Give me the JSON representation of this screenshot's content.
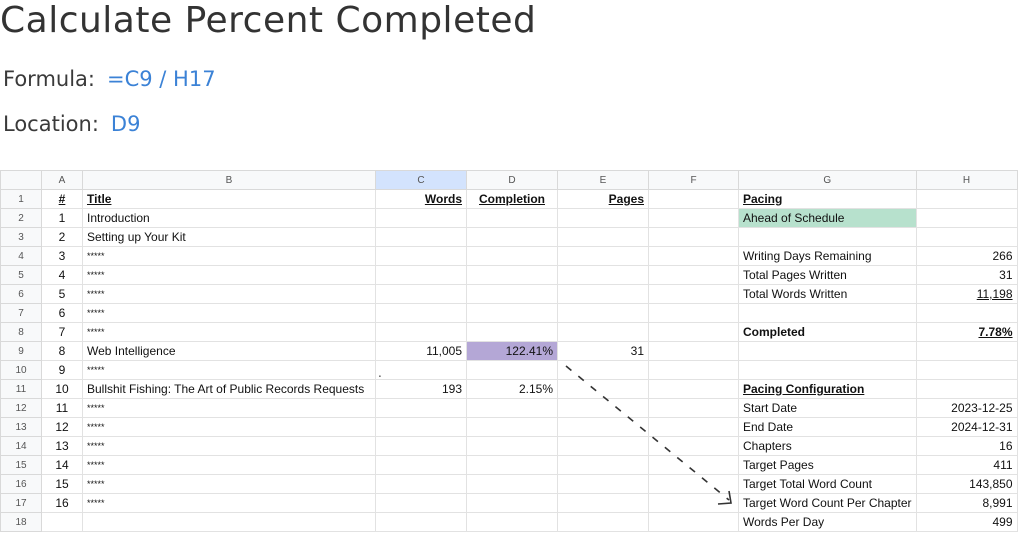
{
  "heading": "Calculate Percent Completed",
  "formula": {
    "label": "Formula:",
    "value": "=C9 / H17"
  },
  "location": {
    "label": "Location:",
    "value": "D9"
  },
  "columns": [
    "A",
    "B",
    "C",
    "D",
    "E",
    "F",
    "G",
    "H"
  ],
  "selected_column": "C",
  "rows": [
    {
      "n": "1",
      "a": "#",
      "b": "Title",
      "c": "Words",
      "d": "Completion",
      "e": "Pages",
      "g": "Pacing",
      "h": ""
    },
    {
      "n": "2",
      "a": "1",
      "b": "Introduction",
      "c": "",
      "d": "",
      "e": "",
      "g": "Ahead of Schedule",
      "h": ""
    },
    {
      "n": "3",
      "a": "2",
      "b": "Setting up Your Kit",
      "c": "",
      "d": "",
      "e": "",
      "g": "",
      "h": ""
    },
    {
      "n": "4",
      "a": "3",
      "b": "*****",
      "c": "",
      "d": "",
      "e": "",
      "g": "Writing Days Remaining",
      "h": "266"
    },
    {
      "n": "5",
      "a": "4",
      "b": "*****",
      "c": "",
      "d": "",
      "e": "",
      "g": "Total Pages Written",
      "h": "31"
    },
    {
      "n": "6",
      "a": "5",
      "b": "*****",
      "c": "",
      "d": "",
      "e": "",
      "g": "Total Words Written",
      "h": "11,198"
    },
    {
      "n": "7",
      "a": "6",
      "b": "*****",
      "c": "",
      "d": "",
      "e": "",
      "g": "",
      "h": ""
    },
    {
      "n": "8",
      "a": "7",
      "b": "*****",
      "c": "",
      "d": "",
      "e": "",
      "g": "Completed",
      "h": "7.78%"
    },
    {
      "n": "9",
      "a": "8",
      "b": "Web Intelligence",
      "c": "11,005",
      "d": "122.41%",
      "e": "31",
      "g": "",
      "h": ""
    },
    {
      "n": "10",
      "a": "9",
      "b": "*****",
      "c": "",
      "d": "",
      "e": "",
      "g": "",
      "h": ""
    },
    {
      "n": "11",
      "a": "10",
      "b": "Bullshit Fishing: The Art of Public Records Requests",
      "c": "193",
      "d": "2.15%",
      "e": "",
      "g": "Pacing Configuration",
      "h": ""
    },
    {
      "n": "12",
      "a": "11",
      "b": "*****",
      "c": "",
      "d": "",
      "e": "",
      "g": "Start Date",
      "h": "2023-12-25"
    },
    {
      "n": "13",
      "a": "12",
      "b": "*****",
      "c": "",
      "d": "",
      "e": "",
      "g": "End Date",
      "h": "2024-12-31"
    },
    {
      "n": "14",
      "a": "13",
      "b": "*****",
      "c": "",
      "d": "",
      "e": "",
      "g": "Chapters",
      "h": "16"
    },
    {
      "n": "15",
      "a": "14",
      "b": "*****",
      "c": "",
      "d": "",
      "e": "",
      "g": "Target Pages",
      "h": "411"
    },
    {
      "n": "16",
      "a": "15",
      "b": "*****",
      "c": "",
      "d": "",
      "e": "",
      "g": "Target Total Word Count",
      "h": "143,850"
    },
    {
      "n": "17",
      "a": "16",
      "b": "*****",
      "c": "",
      "d": "",
      "e": "",
      "g": "Target Word Count Per Chapter",
      "h": "8,991"
    },
    {
      "n": "18",
      "a": "",
      "b": "",
      "c": "",
      "d": "",
      "e": "",
      "g": "Words Per Day",
      "h": "499"
    }
  ],
  "colors": {
    "selected_header": "#d3e3fd",
    "pacing_status": "#b7e1cd",
    "completion_cell": "#b4a7d6",
    "formula_value": "#3b82d6"
  }
}
